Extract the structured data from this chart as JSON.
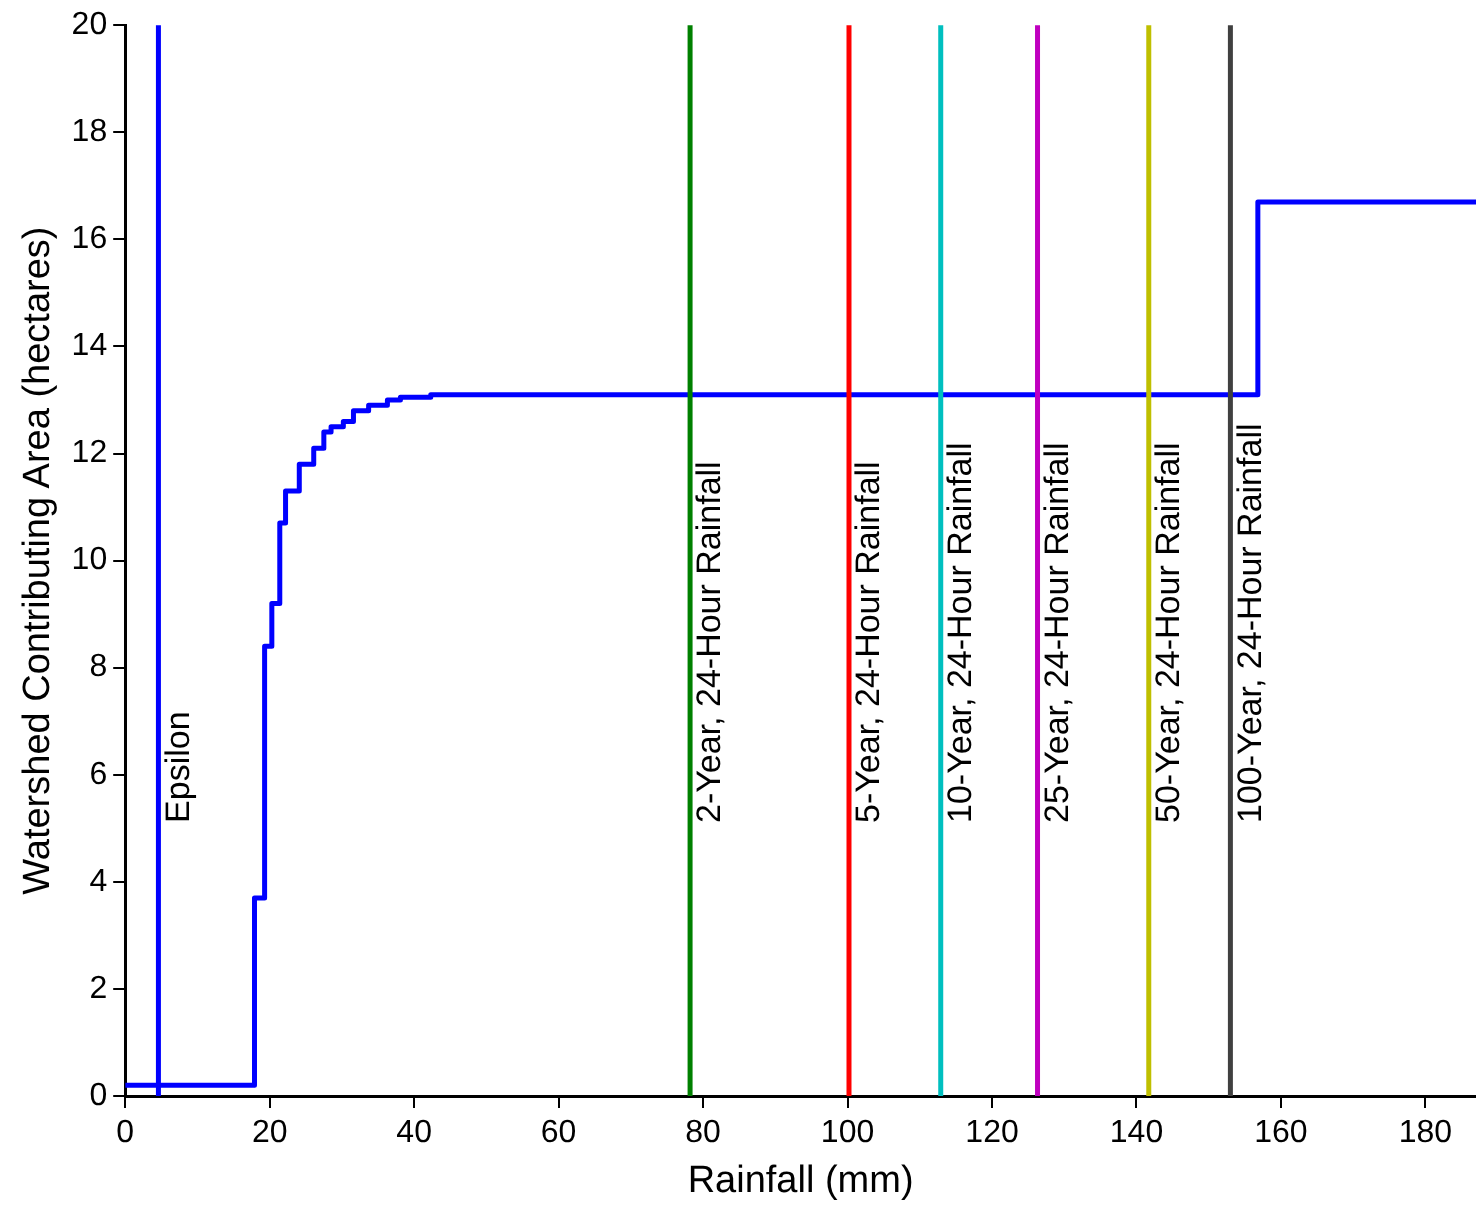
{
  "chart_data": {
    "type": "step",
    "xlabel": "Rainfall (mm)",
    "ylabel": "Watershed Contributing Area (hectares)",
    "x": [
      0,
      17.9,
      19.3,
      20.3,
      21.4,
      22.2,
      24.1,
      26.1,
      27.5,
      28.5,
      30.2,
      31.6,
      33.7,
      36.3,
      38.1,
      42.3,
      156.8,
      187
    ],
    "series": [
      {
        "color": "#0000ff",
        "values": [
          0.2,
          3.7,
          8.4,
          9.2,
          10.7,
          11.3,
          11.8,
          12.1,
          12.4,
          12.5,
          12.6,
          12.8,
          12.9,
          13.0,
          13.05,
          13.1,
          16.7,
          16.7
        ]
      }
    ],
    "xlim": [
      0,
      187
    ],
    "xticks": [
      0,
      20,
      40,
      60,
      80,
      100,
      120,
      140,
      160,
      180
    ],
    "ylim": [
      0,
      20
    ],
    "yticks": [
      0,
      2,
      4,
      6,
      8,
      10,
      12,
      14,
      16,
      18,
      20
    ],
    "grid": false,
    "legend": false,
    "marker": "none",
    "line_style": "solid",
    "ref_lines": [
      {
        "axis": "x",
        "value": 4.6,
        "label": "Epsilon",
        "color": "#0000ff"
      },
      {
        "axis": "x",
        "value": 78.2,
        "label": "2-Year, 24-Hour Rainfall",
        "color": "#008000"
      },
      {
        "axis": "x",
        "value": 100.2,
        "label": "5-Year, 24-Hour Rainfall",
        "color": "#ff0000"
      },
      {
        "axis": "x",
        "value": 112.9,
        "label": "10-Year, 24-Hour Rainfall",
        "color": "#00bfbf"
      },
      {
        "axis": "x",
        "value": 126.3,
        "label": "25-Year, 24-Hour Rainfall",
        "color": "#bf00bf"
      },
      {
        "axis": "x",
        "value": 141.7,
        "label": "50-Year, 24-Hour Rainfall",
        "color": "#bfbf00"
      },
      {
        "axis": "x",
        "value": 153,
        "label": "100-Year, 24-Hour Rainfall",
        "color": "#404040"
      }
    ]
  }
}
